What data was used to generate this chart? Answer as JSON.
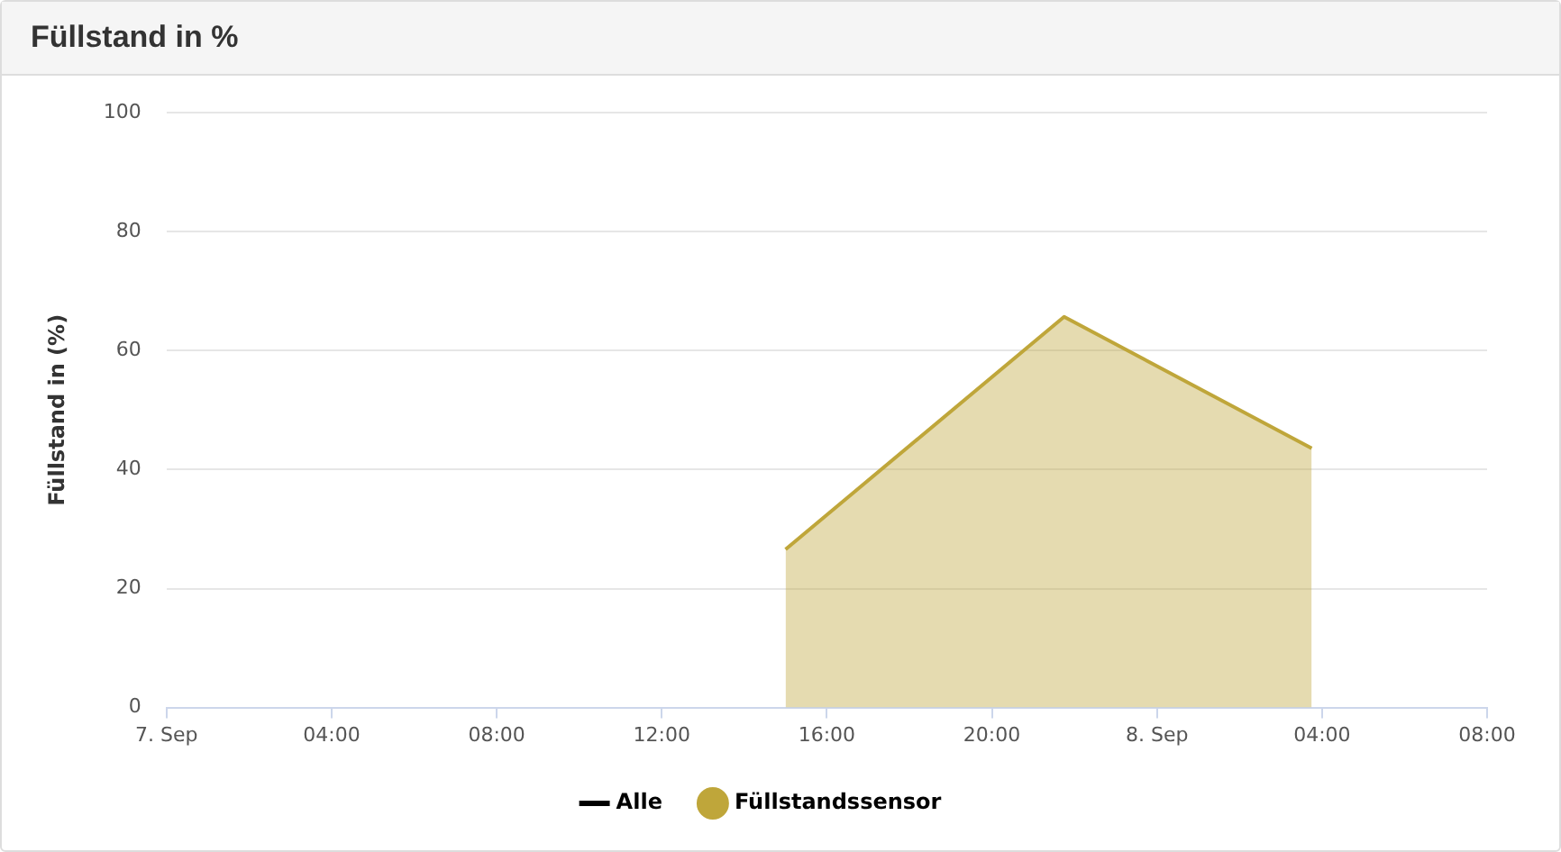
{
  "chart_data": {
    "type": "area",
    "title": "Füllstand in %",
    "ylabel": "Füllstand in (%)",
    "x": [
      "--09-07T15:00",
      "--09-07T21:45",
      "--09-08T03:45"
    ],
    "series": [
      {
        "name": "Alle",
        "type": "line",
        "color": "#000000",
        "values": [
          null,
          null,
          null
        ]
      },
      {
        "name": "Füllstandssensor",
        "color": "#bfa63a",
        "values": [
          26.6,
          65.7,
          43.6
        ]
      }
    ],
    "xlim": [
      "--09-07",
      "--09-08T08:00"
    ],
    "xticks": [
      {
        "value": "--09-07",
        "label": "7. Sep"
      },
      {
        "value": "--09-07T04:00",
        "label": "04:00"
      },
      {
        "value": "--09-07T08:00",
        "label": "08:00"
      },
      {
        "value": "--09-07T12:00",
        "label": "12:00"
      },
      {
        "value": "--09-07T16:00",
        "label": "16:00"
      },
      {
        "value": "--09-07T20:00",
        "label": "20:00"
      },
      {
        "value": "--09-08",
        "label": "8. Sep"
      },
      {
        "value": "--09-08T04:00",
        "label": "04:00"
      },
      {
        "value": "--09-08T08:00",
        "label": "08:00"
      }
    ],
    "ylim": [
      0,
      100
    ],
    "yticks": [
      0,
      20,
      40,
      60,
      80,
      100
    ],
    "grid": "y",
    "legend": "bottom",
    "marker": "none"
  }
}
